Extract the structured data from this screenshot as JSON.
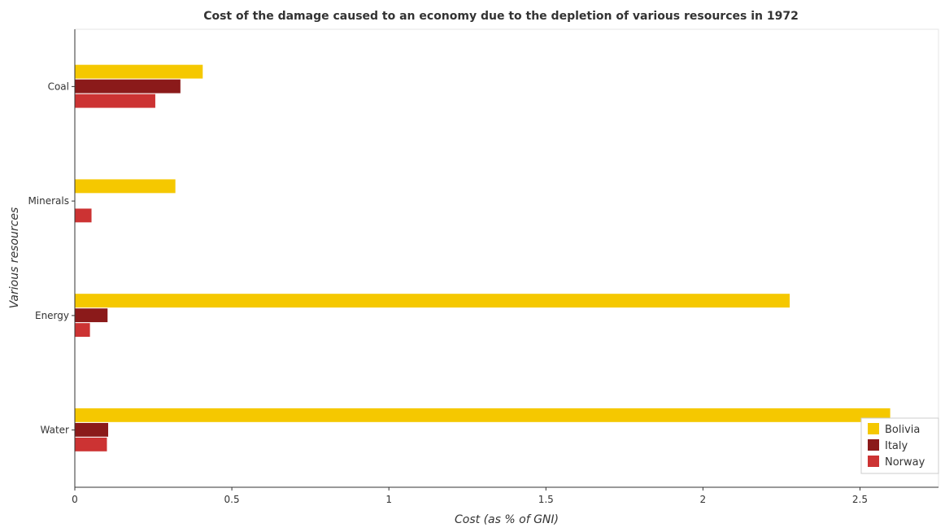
{
  "chart_data": {
    "type": "bar",
    "orientation": "horizontal",
    "title": "Cost of the damage caused to an economy due to the depletion of various resources in 1972",
    "xlabel": "Cost (as % of GNI)",
    "ylabel": "Various resources",
    "categories": [
      "Coal",
      "Minerals",
      "Energy",
      "Water"
    ],
    "xlim": [
      0,
      2.75
    ],
    "xticks": [
      0,
      0.5,
      1,
      1.5,
      2,
      2.5
    ],
    "xtick_labels": [
      "0",
      "0.5",
      "1",
      "1.5",
      "2",
      "2.5"
    ],
    "grid": false,
    "legend_position": "bottom-right",
    "series": [
      {
        "name": "Bolivia",
        "color": "#f5c800",
        "values": [
          0.408,
          0.321,
          2.277,
          2.597
        ]
      },
      {
        "name": "Italy",
        "color": "#8b1a1a",
        "values": [
          0.337,
          0.002,
          0.105,
          0.107
        ]
      },
      {
        "name": "Norway",
        "color": "#cc3333",
        "values": [
          0.257,
          0.054,
          0.049,
          0.103
        ]
      }
    ]
  }
}
